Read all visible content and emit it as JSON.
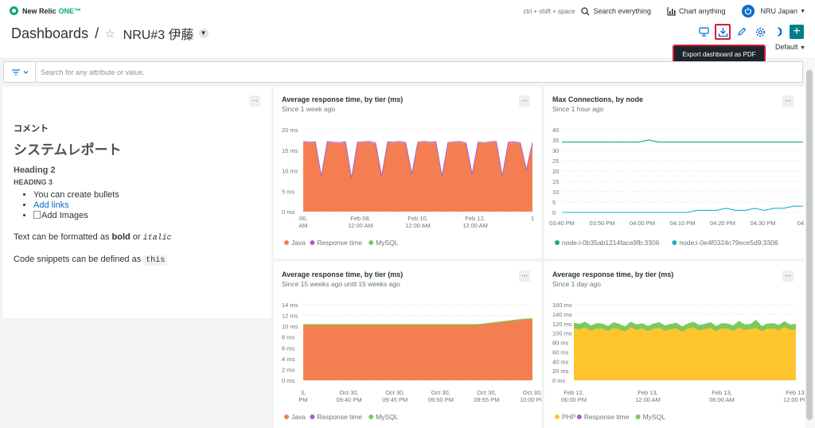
{
  "app": {
    "brand": "New Relic",
    "brand_suffix": "ONE™"
  },
  "topbar": {
    "shortcut": "ctrl + shift + space",
    "search_label": "Search everything",
    "chart_label": "Chart anything",
    "account": "NRU Japan"
  },
  "header": {
    "breadcrumb": "Dashboards",
    "separator": "/",
    "dashboard_name": "NRU#3 伊藤",
    "default_label": "Default"
  },
  "tooltip": {
    "text": "Export dashboard as PDF"
  },
  "filter": {
    "placeholder": "Search for any attribute or value."
  },
  "markdown": {
    "comment": "コメント",
    "h1": "システムレポート",
    "h2": "Heading 2",
    "h3": "HEADING 3",
    "bullet1": "You can create bullets",
    "bullet2": "Add links",
    "bullet3": "Add Images",
    "p1_a": "Text can be formatted as ",
    "p1_bold": "bold",
    "p1_or": " or ",
    "p1_italic": "italic",
    "p2_a": "Code snippets can be defined as ",
    "p2_code": "this"
  },
  "colors": {
    "java": "#f47e52",
    "response": "#a660c9",
    "mysql": "#7ec85c",
    "php": "#ffc52e",
    "node1": "#11a893",
    "node2": "#1bb2c9",
    "accent": "#007e8a",
    "highlight": "#d01f3c"
  },
  "chart_data": [
    {
      "id": "c1",
      "type": "area",
      "title": "Average response time, by tier (ms)",
      "subtitle": "Since 1 week ago",
      "y_ticks": [
        "20 ms",
        "15 ms",
        "10 ms",
        "5 ms",
        "0 ms"
      ],
      "ylim": [
        0,
        20
      ],
      "x_ticks": [
        "06,\n AM",
        "Feb 08,\n12:00 AM",
        "Feb 10,\n12:00 AM",
        "Feb 12,\n12:00 AM",
        "1"
      ],
      "series": [
        {
          "name": "Java",
          "values": [
            17,
            16.8,
            16.9,
            8.5,
            17,
            16.8,
            16.7,
            16.9,
            8,
            16.8,
            16.9,
            17,
            16.6,
            8.5,
            16.9,
            16.8,
            17,
            16.7,
            9,
            16.8,
            17,
            16.8,
            16.9,
            8.5,
            16.7,
            16.9,
            17,
            16.6,
            9,
            16.8,
            16.7,
            16.9,
            17,
            8.5,
            16.8,
            16.9,
            16.6,
            10,
            16.7
          ]
        },
        {
          "name": "Response time",
          "values": []
        },
        {
          "name": "MySQL",
          "values": []
        }
      ],
      "legend": [
        "Java",
        "Response time",
        "MySQL"
      ]
    },
    {
      "id": "c2",
      "type": "line",
      "title": "Max Connections, by node",
      "subtitle": "Since 1 hour ago",
      "y_ticks": [
        "40",
        "35",
        "30",
        "25",
        "20",
        "15",
        "10",
        "5",
        "0"
      ],
      "ylim": [
        0,
        40
      ],
      "x_ticks": [
        "03:40 PM",
        "03:50 PM",
        "04:00 PM",
        "04:10 PM",
        "04:20 PM",
        "04:30 PM",
        "04:4"
      ],
      "series": [
        {
          "name": "node:i-0b35ab1214faca9fb:3306",
          "values": [
            34,
            34,
            34,
            34,
            34,
            34,
            34,
            34,
            34,
            35,
            34,
            34,
            34,
            34,
            34,
            34,
            34,
            34,
            34,
            34,
            34,
            34,
            34,
            34,
            34,
            34
          ]
        },
        {
          "name": "node:i-0e4f0324c79ece5d9:3306",
          "values": [
            0,
            0,
            0,
            0,
            0,
            0,
            0,
            0,
            0,
            0,
            0,
            0,
            0,
            0,
            1,
            1,
            1,
            2,
            1,
            1,
            2,
            1,
            2,
            2,
            3,
            3
          ]
        }
      ],
      "legend": [
        "node:i-0b35ab1214faca9fb:3306",
        "node:i-0e4f0324c79ece5d9:3306"
      ]
    },
    {
      "id": "c3",
      "type": "area",
      "title": "Average response time, by tier (ms)",
      "subtitle": "Since 15 weeks ago until 15 weeks ago",
      "y_ticks": [
        "14 ms",
        "12 ms",
        "10 ms",
        "8 ms",
        "6 ms",
        "4 ms",
        "2 ms",
        "0 ms"
      ],
      "ylim": [
        0,
        14
      ],
      "x_ticks": [
        "3,\nPM",
        "Oct 30,\n09:40 PM",
        "Oct 30,\n09:45 PM",
        "Oct 30,\n09:50 PM",
        "Oct 30,\n09:55 PM",
        "Oct 30,\n10:00 PM"
      ],
      "series": [
        {
          "name": "Java",
          "values": [
            10.2,
            10.2,
            10.2,
            10.2,
            10.2,
            10.2,
            10.2,
            10.2,
            10.2,
            10.2,
            10.2,
            10.2,
            10.2,
            10.2,
            10.2,
            10.2,
            10.2,
            10.2,
            10.2,
            10.2,
            10.4,
            10.6,
            10.8,
            11.0,
            11.2,
            11.3
          ]
        },
        {
          "name": "Response time",
          "values": []
        },
        {
          "name": "MySQL",
          "values": [
            10.4,
            10.4,
            10.4,
            10.4,
            10.4,
            10.4,
            10.4,
            10.4,
            10.4,
            10.4,
            10.4,
            10.4,
            10.4,
            10.4,
            10.4,
            10.4,
            10.4,
            10.4,
            10.4,
            10.4,
            10.6,
            10.8,
            11.0,
            11.2,
            11.4,
            11.5
          ]
        }
      ],
      "legend": [
        "Java",
        "Response time",
        "MySQL"
      ]
    },
    {
      "id": "c4",
      "type": "area",
      "title": "Average response time, by tier (ms)",
      "subtitle": "Since 1 day ago",
      "y_ticks": [
        "160 ms",
        "140 ms",
        "120 ms",
        "100 ms",
        "80 ms",
        "60 ms",
        "40 ms",
        "20 ms",
        "0 ms"
      ],
      "ylim": [
        0,
        160
      ],
      "x_ticks": [
        "Feb 12,\n06:00 PM",
        "Feb 13,\n12:00 AM",
        "Feb 13,\n06:00 AM",
        "Feb 13,\n12:00 PM"
      ],
      "series": [
        {
          "name": "PHP",
          "values": [
            110,
            108,
            112,
            105,
            110,
            109,
            104,
            111,
            108,
            103,
            112,
            107,
            110,
            104,
            109,
            111,
            105,
            108,
            110,
            103,
            109,
            112,
            106,
            108,
            111,
            104,
            110,
            109,
            105,
            112,
            107,
            108,
            111,
            104,
            109,
            110,
            106,
            113,
            107,
            108
          ]
        },
        {
          "name": "Response time",
          "values": []
        },
        {
          "name": "MySQL",
          "values": [
            122,
            119,
            124,
            116,
            121,
            120,
            115,
            123,
            119,
            114,
            124,
            118,
            121,
            115,
            120,
            123,
            116,
            119,
            122,
            114,
            120,
            124,
            117,
            119,
            123,
            115,
            121,
            120,
            116,
            126,
            118,
            119,
            128,
            115,
            120,
            121,
            117,
            125,
            118,
            119
          ]
        }
      ],
      "legend": [
        "PHP",
        "Response time",
        "MySQL"
      ]
    }
  ]
}
